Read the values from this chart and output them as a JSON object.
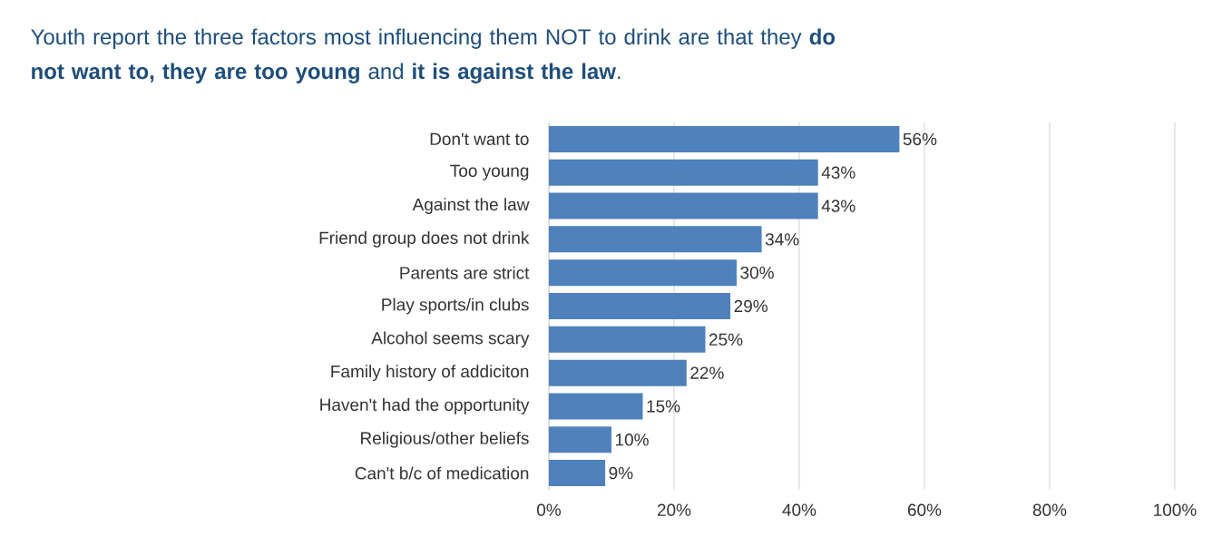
{
  "chart_data": {
    "type": "bar",
    "orientation": "horizontal",
    "title": "Youth report the three factors most influencing them NOT to drink are that they **do not want to, they are too young** and **it is against the law**.",
    "categories": [
      "Don't want to",
      "Too young",
      "Against the law",
      "Friend group does not drink",
      "Parents are strict",
      "Play sports/in clubs",
      "Alcohol seems scary",
      "Family history of addiciton",
      "Haven't had the opportunity",
      "Religious/other beliefs",
      "Can't b/c of medication"
    ],
    "values": [
      56,
      43,
      43,
      34,
      30,
      29,
      25,
      22,
      15,
      10,
      9
    ],
    "value_labels": [
      "56%",
      "43%",
      "43%",
      "34%",
      "30%",
      "29%",
      "25%",
      "22%",
      "15%",
      "10%",
      "9%"
    ],
    "color": "#4f81bd",
    "xlim": [
      0,
      100
    ],
    "xticks": [
      {
        "value": 0,
        "label": "0%"
      },
      {
        "value": 20,
        "label": "20%"
      },
      {
        "value": 40,
        "label": "40%"
      },
      {
        "value": 60,
        "label": "60%"
      },
      {
        "value": 80,
        "label": "80%"
      },
      {
        "value": 100,
        "label": "100%"
      }
    ],
    "grid": "x"
  }
}
